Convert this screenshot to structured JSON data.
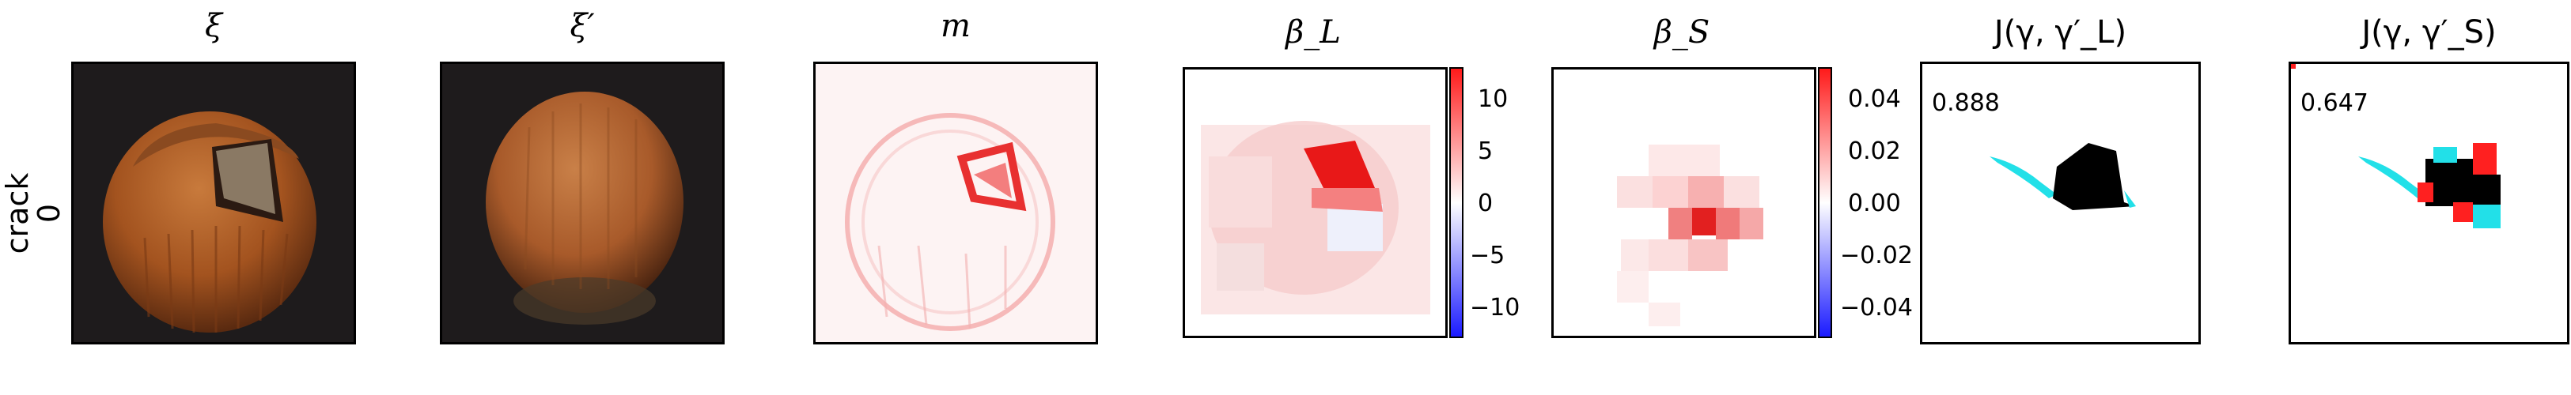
{
  "row": {
    "label_top": "crack",
    "label_bottom": "0"
  },
  "panels": [
    {
      "title": "ξ"
    },
    {
      "title": "ξ′"
    },
    {
      "title": "m"
    },
    {
      "title": "β_L"
    },
    {
      "title": "β_S"
    },
    {
      "title": "J(γ, γ′_L)"
    },
    {
      "title": "J(γ, γ′_S)"
    }
  ],
  "colorbar_L": {
    "ticks": [
      "10",
      "5",
      "0",
      "−5",
      "−10"
    ],
    "range": [
      -13,
      13
    ],
    "colors": [
      "#1a1aff",
      "#ffffff",
      "#ff1a1a"
    ]
  },
  "colorbar_S": {
    "ticks": [
      "0.04",
      "0.02",
      "0.00",
      "−0.02",
      "−0.04"
    ],
    "range": [
      -0.05,
      0.05
    ],
    "colors": [
      "#1a1aff",
      "#ffffff",
      "#ff1a1a"
    ]
  },
  "scores": {
    "L": "0.888",
    "S": "0.647"
  },
  "colors": {
    "mask_match": "#000000",
    "mask_miss": "#22e0e8",
    "mask_extra": "#ff2020",
    "nut_dark": "#5a2a10",
    "nut_light": "#b8652f",
    "bg_dark": "#1e1b1c"
  }
}
